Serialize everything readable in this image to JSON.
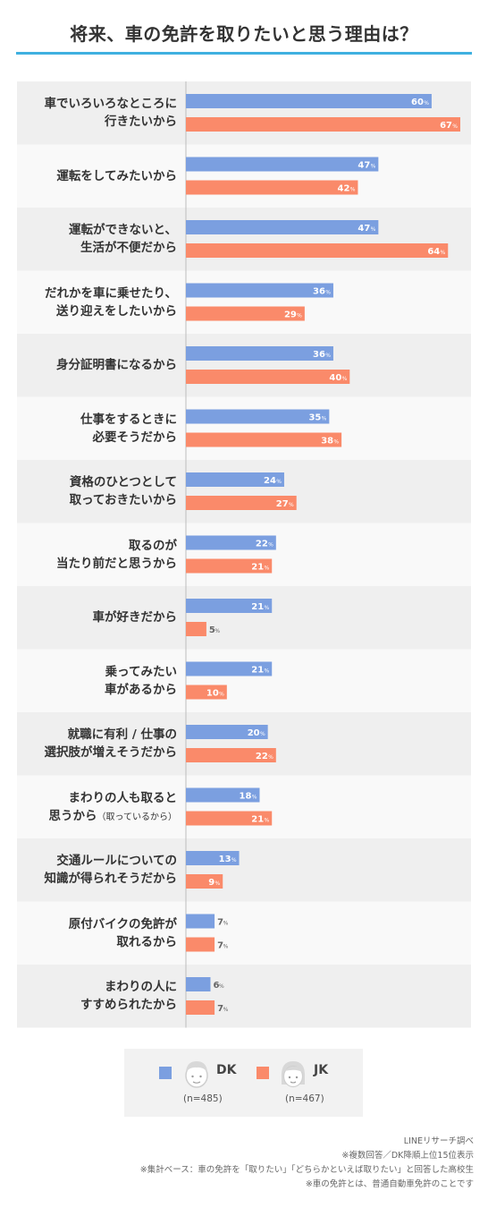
{
  "title": "将来、車の免許を取りたいと思う理由は？",
  "chart_data": {
    "type": "bar",
    "orientation": "horizontal",
    "categories": [
      "車でいろいろなところに\n行きたいから",
      "運転をしてみたいから",
      "運転ができないと、\n生活が不便だから",
      "だれかを車に乗せたり、\n送り迎えをしたいから",
      "身分証明書になるから",
      "仕事をするときに\n必要そうだから",
      "資格のひとつとして\n取っておきたいから",
      "取るのが\n当たり前だと思うから",
      "車が好きだから",
      "乗ってみたい\n車があるから",
      "就職に有利 / 仕事の\n選択肢が増えそうだから",
      "まわりの人も取ると\n思うから",
      "交通ルールについての\n知識が得られそうだから",
      "原付バイクの免許が\n取れるから",
      "まわりの人に\nすすめられたから"
    ],
    "category_notes": {
      "11": "（取っているから）"
    },
    "series": [
      {
        "name": "DK",
        "color": "#7b9fe0",
        "values": [
          60,
          47,
          47,
          36,
          36,
          35,
          24,
          22,
          21,
          21,
          20,
          18,
          13,
          7,
          6
        ]
      },
      {
        "name": "JK",
        "color": "#fa8a6a",
        "values": [
          67,
          42,
          64,
          29,
          40,
          38,
          27,
          21,
          5,
          10,
          22,
          21,
          9,
          7,
          7
        ]
      }
    ],
    "value_suffix": "%",
    "xlim": [
      0,
      67
    ]
  },
  "legend": {
    "dk": {
      "name": "DK",
      "n": "(n=485)"
    },
    "jk": {
      "name": "JK",
      "n": "(n=467)"
    }
  },
  "notes": [
    "LINEリサーチ調べ",
    "※複数回答／DK降順上位15位表示",
    "※集計ベース：車の免許を「取りたい」「どちらかといえば取りたい」と回答した高校生",
    "※車の免許とは、普通自動車免許のことです"
  ]
}
